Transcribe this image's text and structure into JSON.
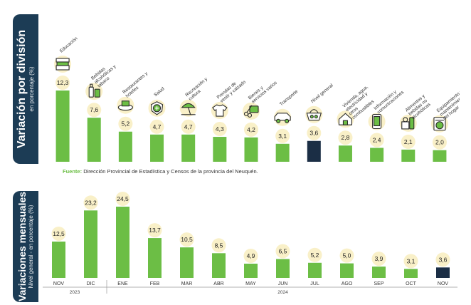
{
  "source": {
    "label": "Fuente:",
    "text": "Dirección Provincial de Estadística y Censos de la provincia del Neuquén."
  },
  "colors": {
    "bar": "#6cbe45",
    "highlight": "#1b2e45",
    "sidebar": "#1c3c55",
    "bubble": "#f9f0c8"
  },
  "chart_data": [
    {
      "type": "bar",
      "title": "Variación por división",
      "ylabel": "en porcentaje (%)",
      "categories": [
        "Educación",
        "Bebidas alcohólicas y tabaco",
        "Restaurantes y hoteles",
        "Salud",
        "Recreación y cultura",
        "Prendas de vestir y calzado",
        "Bienes y servicios varios",
        "Transporte",
        "Nivel general",
        "Vivienda, agua, electricidad y otros combustibles",
        "Información y comunicaciones",
        "Alimentos y bebidas no alcohólicas",
        "Equipamiento y mantenimiento del hogar"
      ],
      "values": [
        12.3,
        7.6,
        5.2,
        4.7,
        4.7,
        4.3,
        4.2,
        3.1,
        3.6,
        2.8,
        2.4,
        2.1,
        2.0
      ],
      "value_labels": [
        "12,3",
        "7,6",
        "5,2",
        "4,7",
        "4,7",
        "4,3",
        "4,2",
        "3,1",
        "3,6",
        "2,8",
        "2,4",
        "2,1",
        "2,0"
      ],
      "icons": [
        "books-icon",
        "bottles-icon",
        "food-icon",
        "health-cross-icon",
        "beach-umbrella-icon",
        "tshirt-icon",
        "scissors-card-icon",
        "car-icon",
        "basket-icon",
        "house-utilities-icon",
        "smartphone-icon",
        "groceries-icon",
        "washing-machine-icon"
      ],
      "highlight_index": 8,
      "ylim": [
        0,
        12.3
      ]
    },
    {
      "type": "bar",
      "title": "Variaciones mensuales",
      "ylabel": "Nivel general - en porcentaje (%)",
      "categories": [
        "NOV",
        "DIC",
        "ENE",
        "FEB",
        "MAR",
        "ABR",
        "MAY",
        "JUN",
        "JUL",
        "AGO",
        "SEP",
        "OCT",
        "NOV"
      ],
      "values": [
        12.5,
        23.2,
        24.5,
        13.7,
        10.5,
        8.5,
        4.9,
        6.5,
        5.2,
        5.0,
        3.9,
        3.1,
        3.6
      ],
      "value_labels": [
        "12,5",
        "23,2",
        "24,5",
        "13,7",
        "10,5",
        "8,5",
        "4,9",
        "6,5",
        "5,2",
        "5,0",
        "3,9",
        "3,1",
        "3,6"
      ],
      "highlight_index": 12,
      "year_groups": [
        {
          "label": "2023",
          "from": 0,
          "to": 1
        },
        {
          "label": "2024",
          "from": 2,
          "to": 12
        }
      ],
      "ylim": [
        0,
        24.5
      ]
    }
  ]
}
